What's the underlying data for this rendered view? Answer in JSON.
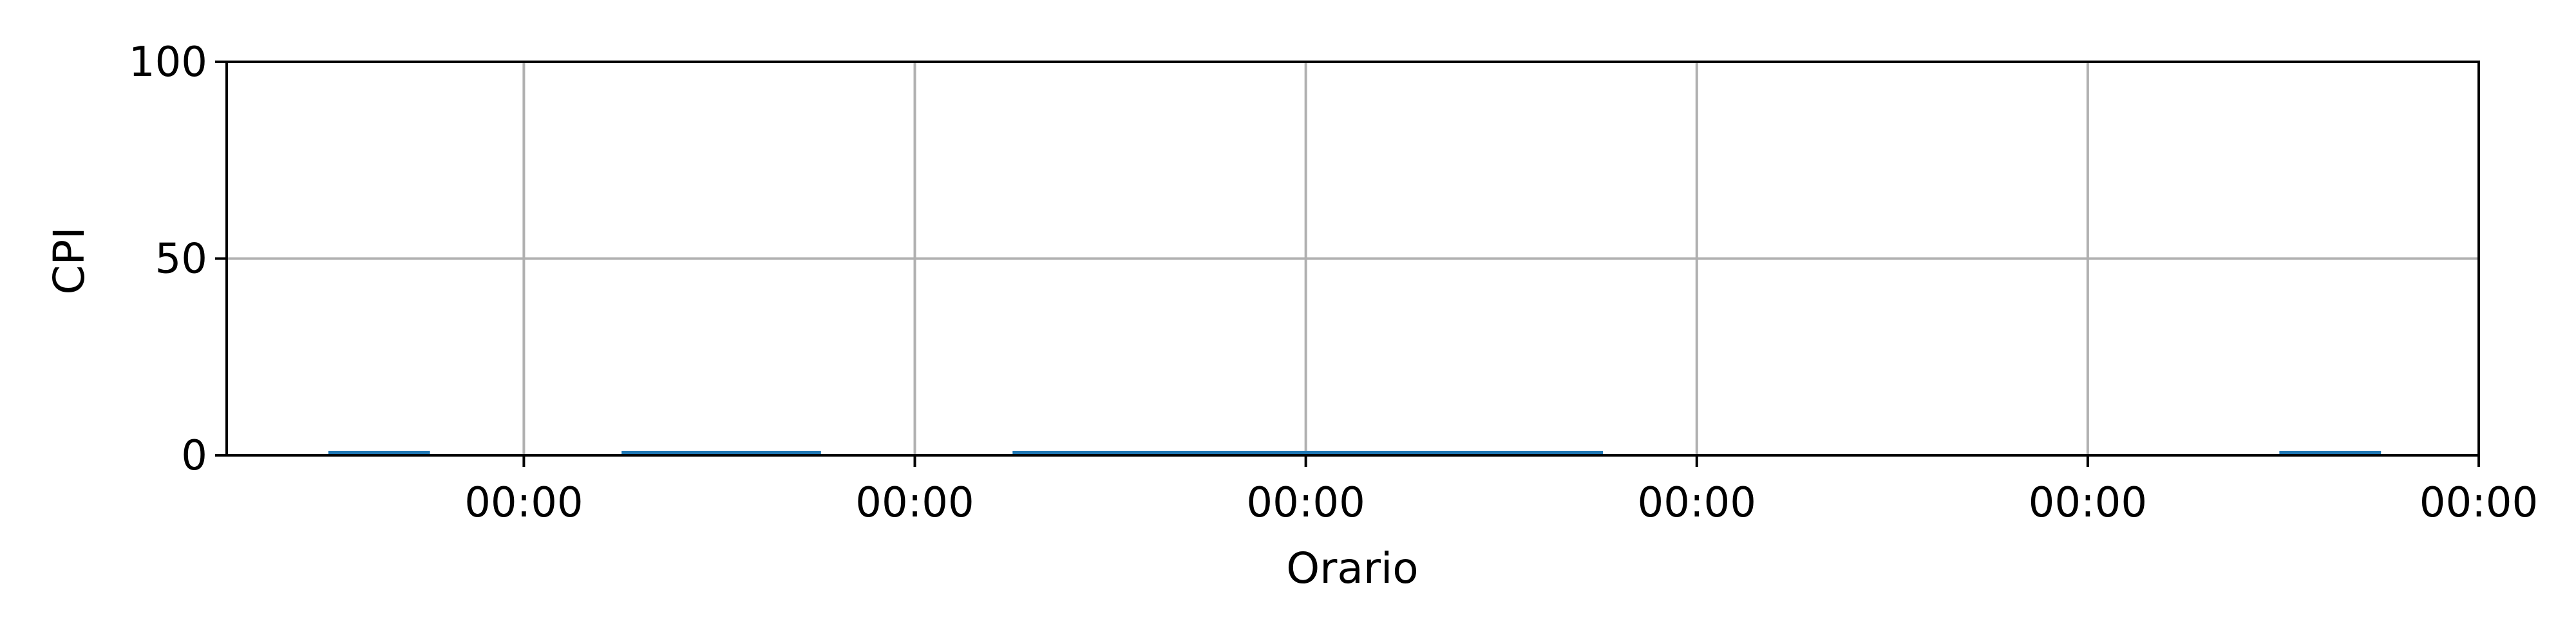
{
  "chart_data": {
    "type": "bar",
    "title": "",
    "xlabel": "Orario",
    "ylabel": "CPI",
    "ylim": [
      0,
      100
    ],
    "y_ticks": [
      0,
      50,
      100
    ],
    "x_ticks": [
      "00:00",
      "00:00",
      "00:00",
      "00:00",
      "00:00",
      "00:00"
    ],
    "x_tick_positions": [
      1,
      2,
      3,
      4,
      5,
      6
    ],
    "xlim": [
      0.24,
      6.0
    ],
    "grid": true,
    "bar_color": "#1f77b4",
    "series": [
      {
        "bars": [
          {
            "x_start": 0.5,
            "x_end": 0.76,
            "value": 0.4
          },
          {
            "x_start": 1.25,
            "x_end": 1.76,
            "value": 0.4
          },
          {
            "x_start": 2.25,
            "x_end": 3.76,
            "value": 0.4
          },
          {
            "x_start": 5.49,
            "x_end": 5.75,
            "value": 0.4
          }
        ]
      }
    ]
  },
  "colors": {
    "grid": "#b0b0b0",
    "axes": "#000000",
    "bars": "#1f77b4"
  }
}
